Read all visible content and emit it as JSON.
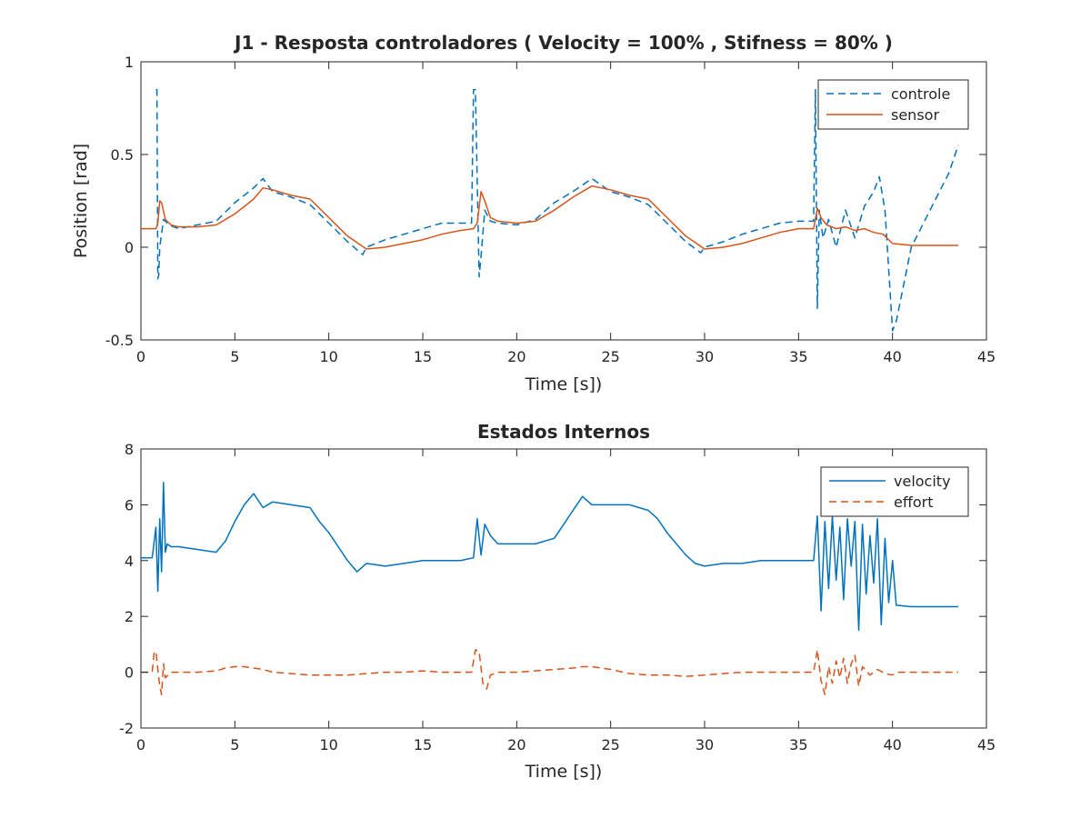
{
  "colors": {
    "series1": "#0072BD",
    "series2": "#D95319",
    "axis": "#262626",
    "background": "#ffffff"
  },
  "chart_data": [
    {
      "type": "line",
      "title": "J1 - Resposta controladores ( Velocity = 100% , Stifness = 80% )",
      "xlabel": "Time [s])",
      "ylabel": "Position [rad]",
      "xlim": [
        0,
        45
      ],
      "ylim": [
        -0.5,
        1
      ],
      "xticks": [
        "0",
        "5",
        "10",
        "15",
        "20",
        "25",
        "30",
        "35",
        "40",
        "45"
      ],
      "yticks": [
        "-0.5",
        "0",
        "0.5",
        "1"
      ],
      "grid": false,
      "legend": "top-right",
      "series": [
        {
          "name": "controle",
          "style": "dashed",
          "x": [
            0.8,
            0.85,
            0.9,
            0.95,
            1.0,
            1.2,
            1.5,
            2,
            3,
            4,
            5,
            6,
            6.5,
            7,
            8,
            9,
            10,
            11,
            11.8,
            12,
            13,
            14,
            15,
            16,
            17,
            17.6,
            17.7,
            17.8,
            18.0,
            18.1,
            18.3,
            18.6,
            19,
            20,
            21,
            22,
            23,
            24,
            25,
            26,
            27,
            28,
            29,
            29.8,
            30,
            31,
            32,
            33,
            34,
            35,
            35.8,
            35.9,
            36.0,
            36.1,
            36.3,
            36.6,
            37,
            37.5,
            38,
            38.5,
            39,
            39.3,
            39.6,
            40.0,
            40.2,
            41,
            42,
            43,
            43.5
          ],
          "y": [
            0.85,
            0.85,
            -0.17,
            -0.15,
            0.0,
            0.15,
            0.12,
            0.1,
            0.12,
            0.14,
            0.24,
            0.32,
            0.37,
            0.3,
            0.27,
            0.23,
            0.13,
            0.03,
            -0.04,
            0.0,
            0.04,
            0.07,
            0.1,
            0.13,
            0.13,
            0.13,
            0.85,
            0.85,
            -0.16,
            -0.05,
            0.2,
            0.14,
            0.13,
            0.12,
            0.15,
            0.24,
            0.3,
            0.37,
            0.3,
            0.27,
            0.23,
            0.13,
            0.03,
            -0.03,
            0.0,
            0.03,
            0.07,
            0.1,
            0.13,
            0.14,
            0.14,
            0.85,
            -0.33,
            0.2,
            0.05,
            0.15,
            0.0,
            0.2,
            0.05,
            0.22,
            0.3,
            0.38,
            0.2,
            -0.45,
            -0.4,
            0.0,
            0.2,
            0.4,
            0.55
          ]
        },
        {
          "name": "sensor",
          "style": "solid",
          "x": [
            0,
            0.8,
            0.9,
            1.0,
            1.1,
            1.3,
            1.6,
            2,
            3,
            4,
            5,
            6,
            6.5,
            7,
            8,
            9,
            10,
            11,
            12,
            13,
            14,
            15,
            16,
            17,
            17.7,
            17.9,
            18.1,
            18.3,
            18.6,
            19,
            20,
            21,
            22,
            23,
            24,
            25,
            26,
            27,
            28,
            29,
            30,
            31,
            32,
            33,
            34,
            35,
            35.8,
            36.0,
            36.2,
            36.5,
            37,
            37.5,
            38,
            38.5,
            39,
            39.5,
            40,
            41,
            42,
            43,
            43.5
          ],
          "y": [
            0.1,
            0.1,
            0.13,
            0.25,
            0.24,
            0.15,
            0.12,
            0.11,
            0.11,
            0.12,
            0.18,
            0.26,
            0.32,
            0.31,
            0.28,
            0.26,
            0.16,
            0.06,
            -0.01,
            0.0,
            0.02,
            0.04,
            0.07,
            0.09,
            0.1,
            0.13,
            0.3,
            0.25,
            0.16,
            0.14,
            0.13,
            0.14,
            0.2,
            0.27,
            0.33,
            0.31,
            0.28,
            0.26,
            0.16,
            0.06,
            -0.01,
            0.0,
            0.02,
            0.05,
            0.08,
            0.1,
            0.1,
            0.21,
            0.16,
            0.12,
            0.1,
            0.11,
            0.09,
            0.1,
            0.08,
            0.07,
            0.02,
            0.01,
            0.01,
            0.01,
            0.01
          ]
        }
      ]
    },
    {
      "type": "line",
      "title": "Estados Internos",
      "xlabel": "Time [s])",
      "ylabel": "",
      "xlim": [
        0,
        45
      ],
      "ylim": [
        -2,
        8
      ],
      "xticks": [
        "0",
        "5",
        "10",
        "15",
        "20",
        "25",
        "30",
        "35",
        "40",
        "45"
      ],
      "yticks": [
        "-2",
        "0",
        "2",
        "4",
        "6",
        "8"
      ],
      "grid": false,
      "legend": "top-right",
      "series": [
        {
          "name": "velocity",
          "style": "solid",
          "x": [
            0,
            0.6,
            0.8,
            0.9,
            1.0,
            1.1,
            1.2,
            1.3,
            1.4,
            1.6,
            2,
            3,
            4,
            4.5,
            5,
            5.5,
            6,
            6.5,
            7,
            8,
            9,
            9.5,
            10,
            10.5,
            11,
            11.5,
            12,
            13,
            14,
            15,
            16,
            17,
            17.7,
            17.9,
            18.1,
            18.3,
            18.6,
            19,
            20,
            21,
            22,
            22.5,
            23,
            23.5,
            24,
            25,
            26,
            27,
            27.5,
            28,
            28.5,
            29,
            29.5,
            30,
            31,
            32,
            33,
            34,
            35,
            35.8,
            36.0,
            36.2,
            36.4,
            36.6,
            36.8,
            37.0,
            37.2,
            37.4,
            37.6,
            37.8,
            38.0,
            38.2,
            38.4,
            38.6,
            38.8,
            39.0,
            39.2,
            39.4,
            39.6,
            39.8,
            40.0,
            40.2,
            41,
            42,
            43,
            43.5
          ],
          "y": [
            4.1,
            4.1,
            5.2,
            2.9,
            5.5,
            3.6,
            6.8,
            4.3,
            4.6,
            4.5,
            4.5,
            4.4,
            4.3,
            4.7,
            5.4,
            6.0,
            6.4,
            5.9,
            6.1,
            6.0,
            5.9,
            5.4,
            5.0,
            4.5,
            4.0,
            3.6,
            3.9,
            3.8,
            3.9,
            4.0,
            4.0,
            4.0,
            4.1,
            5.5,
            4.2,
            5.3,
            4.9,
            4.6,
            4.6,
            4.6,
            4.8,
            5.3,
            5.8,
            6.3,
            6.0,
            6.0,
            6.0,
            5.8,
            5.5,
            5.0,
            4.6,
            4.2,
            3.9,
            3.8,
            3.9,
            3.9,
            4.0,
            4.0,
            4.0,
            4.0,
            5.6,
            2.2,
            5.4,
            3.0,
            5.6,
            3.3,
            5.2,
            2.6,
            5.5,
            3.8,
            5.4,
            1.5,
            5.3,
            2.8,
            4.9,
            3.2,
            5.5,
            1.7,
            4.8,
            2.5,
            4.0,
            2.4,
            2.35,
            2.35,
            2.35,
            2.35
          ]
        },
        {
          "name": "effort",
          "style": "dashed",
          "x": [
            0,
            0.6,
            0.7,
            0.8,
            0.9,
            1.0,
            1.1,
            1.2,
            1.3,
            1.6,
            2,
            3,
            4,
            4.5,
            5,
            5.5,
            6,
            6.5,
            7,
            8,
            9,
            10,
            11,
            12,
            13,
            14,
            15,
            16,
            17,
            17.6,
            17.8,
            18.0,
            18.2,
            18.4,
            18.6,
            19,
            20,
            21,
            22,
            23,
            23.5,
            24,
            24.5,
            25,
            26,
            27,
            28,
            29,
            30,
            31,
            32,
            33,
            34,
            35,
            35.8,
            36.0,
            36.2,
            36.4,
            36.6,
            36.8,
            37.0,
            37.2,
            37.4,
            37.6,
            37.8,
            38.0,
            38.2,
            38.4,
            38.8,
            39.2,
            39.6,
            40.0,
            40.2,
            41,
            42,
            43,
            43.5
          ],
          "y": [
            0.0,
            0.0,
            0.7,
            0.75,
            0.1,
            -0.5,
            -0.8,
            0.3,
            -0.2,
            0.0,
            0.0,
            0.0,
            0.05,
            0.15,
            0.2,
            0.2,
            0.15,
            0.1,
            0.0,
            -0.05,
            -0.1,
            -0.1,
            -0.1,
            -0.05,
            0.0,
            0.0,
            0.05,
            0.0,
            0.0,
            0.0,
            0.8,
            0.75,
            -0.4,
            -0.6,
            -0.1,
            0.0,
            0.0,
            0.05,
            0.1,
            0.15,
            0.2,
            0.2,
            0.15,
            0.1,
            -0.05,
            -0.1,
            -0.1,
            -0.15,
            -0.1,
            -0.05,
            0.0,
            0.0,
            0.0,
            0.0,
            0.0,
            0.8,
            -0.3,
            -0.8,
            0.2,
            -0.4,
            0.4,
            -0.2,
            0.5,
            -0.4,
            0.3,
            0.6,
            -0.5,
            0.2,
            -0.1,
            0.1,
            -0.05,
            -0.1,
            0.0,
            0.0,
            0.0,
            0.0,
            0.0
          ]
        }
      ]
    }
  ]
}
